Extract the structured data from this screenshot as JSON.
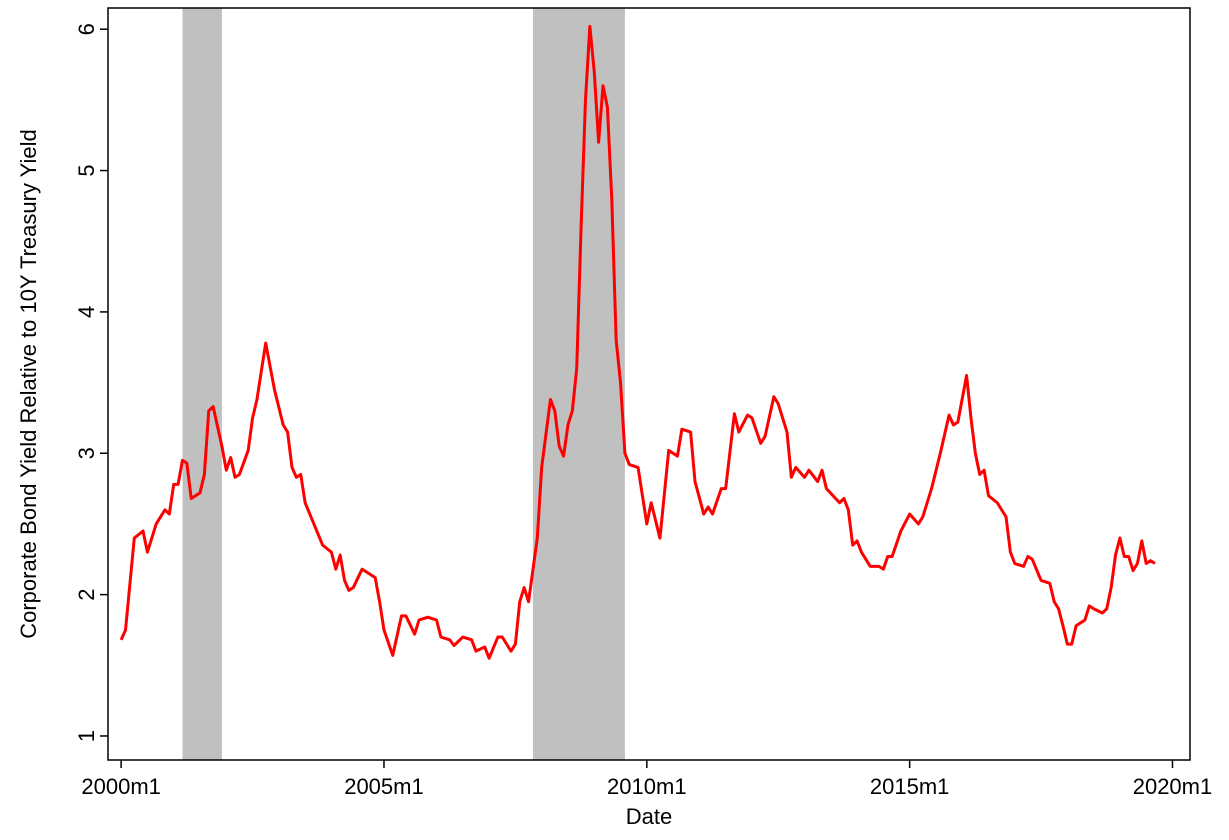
{
  "chart_data": {
    "type": "line",
    "ylabel": "Corporate Bond Yield Relative to 10Y Treasury Yield",
    "xlabel": "Date",
    "x": [
      "2000m1",
      "2000m2",
      "2000m4",
      "2000m6",
      "2000m7",
      "2000m9",
      "2000m11",
      "2000m12",
      "2001m1",
      "2001m2",
      "2001m3",
      "2001m4",
      "2001m5",
      "2001m7",
      "2001m8",
      "2001m9",
      "2001m10",
      "2001m12",
      "2002m1",
      "2002m2",
      "2002m3",
      "2002m4",
      "2002m6",
      "2002m7",
      "2002m8",
      "2002m10",
      "2002m12",
      "2003m2",
      "2003m3",
      "2003m4",
      "2003m5",
      "2003m6",
      "2003m7",
      "2003m9",
      "2003m11",
      "2004m1",
      "2004m2",
      "2004m3",
      "2004m4",
      "2004m5",
      "2004m6",
      "2004m8",
      "2004m11",
      "2004m12",
      "2005m1",
      "2005m3",
      "2005m5",
      "2005m6",
      "2005m8",
      "2005m9",
      "2005m11",
      "2006m1",
      "2006m2",
      "2006m4",
      "2006m5",
      "2006m7",
      "2006m9",
      "2006m10",
      "2006m12",
      "2007m1",
      "2007m3",
      "2007m4",
      "2007m6",
      "2007m7",
      "2007m8",
      "2007m9",
      "2007m10",
      "2007m12",
      "2008m1",
      "2008m3",
      "2008m4",
      "2008m5",
      "2008m6",
      "2008m7",
      "2008m8",
      "2008m9",
      "2008m10",
      "2008m11",
      "2008m12",
      "2009m1",
      "2009m2",
      "2009m3",
      "2009m4",
      "2009m5",
      "2009m6",
      "2009m7",
      "2009m8",
      "2009m9",
      "2009m11",
      "2010m1",
      "2010m2",
      "2010m4",
      "2010m6",
      "2010m8",
      "2010m9",
      "2010m11",
      "2010m12",
      "2011m2",
      "2011m3",
      "2011m4",
      "2011m6",
      "2011m7",
      "2011m9",
      "2011m10",
      "2011m12",
      "2012m1",
      "2012m3",
      "2012m4",
      "2012m6",
      "2012m7",
      "2012m9",
      "2012m10",
      "2012m11",
      "2013m1",
      "2013m2",
      "2013m4",
      "2013m5",
      "2013m6",
      "2013m9",
      "2013m10",
      "2013m11",
      "2013m12",
      "2014m1",
      "2014m2",
      "2014m4",
      "2014m6",
      "2014m7",
      "2014m8",
      "2014m9",
      "2014m11",
      "2015m1",
      "2015m3",
      "2015m4",
      "2015m6",
      "2015m8",
      "2015m10",
      "2015m11",
      "2015m12",
      "2016m2",
      "2016m3",
      "2016m4",
      "2016m5",
      "2016m6",
      "2016m7",
      "2016m9",
      "2016m11",
      "2016m12",
      "2017m1",
      "2017m3",
      "2017m4",
      "2017m5",
      "2017m7",
      "2017m9",
      "2017m10",
      "2017m11",
      "2017m12",
      "2018m1",
      "2018m2",
      "2018m3",
      "2018m5",
      "2018m6",
      "2018m7",
      "2018m9",
      "2018m10",
      "2018m11",
      "2018m12",
      "2019m1",
      "2019m2",
      "2019m3",
      "2019m4",
      "2019m5",
      "2019m6",
      "2019m7",
      "2019m8",
      "2019m9"
    ],
    "series": [
      {
        "color": "#ff0000",
        "values": [
          1.68,
          1.75,
          2.4,
          2.45,
          2.3,
          2.5,
          2.6,
          2.57,
          2.78,
          2.78,
          2.95,
          2.93,
          2.68,
          2.72,
          2.85,
          3.3,
          3.33,
          3.05,
          2.88,
          2.97,
          2.83,
          2.85,
          3.02,
          3.25,
          3.38,
          3.78,
          3.45,
          3.2,
          3.15,
          2.9,
          2.83,
          2.85,
          2.65,
          2.5,
          2.35,
          2.3,
          2.18,
          2.28,
          2.1,
          2.03,
          2.05,
          2.18,
          2.12,
          1.95,
          1.75,
          1.57,
          1.85,
          1.85,
          1.72,
          1.82,
          1.84,
          1.82,
          1.7,
          1.68,
          1.64,
          1.7,
          1.68,
          1.6,
          1.63,
          1.55,
          1.7,
          1.7,
          1.6,
          1.65,
          1.95,
          2.05,
          1.95,
          2.4,
          2.9,
          3.38,
          3.3,
          3.05,
          2.98,
          3.2,
          3.3,
          3.6,
          4.6,
          5.5,
          6.02,
          5.7,
          5.2,
          5.6,
          5.45,
          4.8,
          3.8,
          3.5,
          3.0,
          2.92,
          2.9,
          2.5,
          2.65,
          2.4,
          3.02,
          2.98,
          3.17,
          3.15,
          2.8,
          2.57,
          2.62,
          2.57,
          2.75,
          2.75,
          3.28,
          3.15,
          3.27,
          3.25,
          3.07,
          3.12,
          3.4,
          3.35,
          3.15,
          2.83,
          2.9,
          2.83,
          2.88,
          2.8,
          2.88,
          2.75,
          2.65,
          2.68,
          2.6,
          2.35,
          2.38,
          2.3,
          2.2,
          2.2,
          2.18,
          2.27,
          2.27,
          2.45,
          2.57,
          2.5,
          2.55,
          2.75,
          3.0,
          3.27,
          3.2,
          3.22,
          3.55,
          3.25,
          3.0,
          2.85,
          2.88,
          2.7,
          2.65,
          2.55,
          2.3,
          2.22,
          2.2,
          2.27,
          2.25,
          2.1,
          2.08,
          1.95,
          1.9,
          1.78,
          1.65,
          1.65,
          1.78,
          1.82,
          1.92,
          1.9,
          1.87,
          1.9,
          2.05,
          2.28,
          2.4,
          2.27,
          2.27,
          2.17,
          2.22,
          2.38,
          2.22,
          2.24,
          2.22
        ]
      }
    ],
    "shaded_periods": [
      {
        "start": "2001m3",
        "end": "2001m12",
        "color": "#c0c0c0"
      },
      {
        "start": "2007m11",
        "end": "2009m8",
        "color": "#c0c0c0"
      }
    ],
    "xlim": [
      "1999m10",
      "2020m5"
    ],
    "xticks": [
      "2000m1",
      "2005m1",
      "2010m1",
      "2015m1",
      "2020m1"
    ],
    "ylim": [
      0.83,
      6.15
    ],
    "yticks": [
      1,
      2,
      3,
      4,
      5,
      6
    ]
  }
}
